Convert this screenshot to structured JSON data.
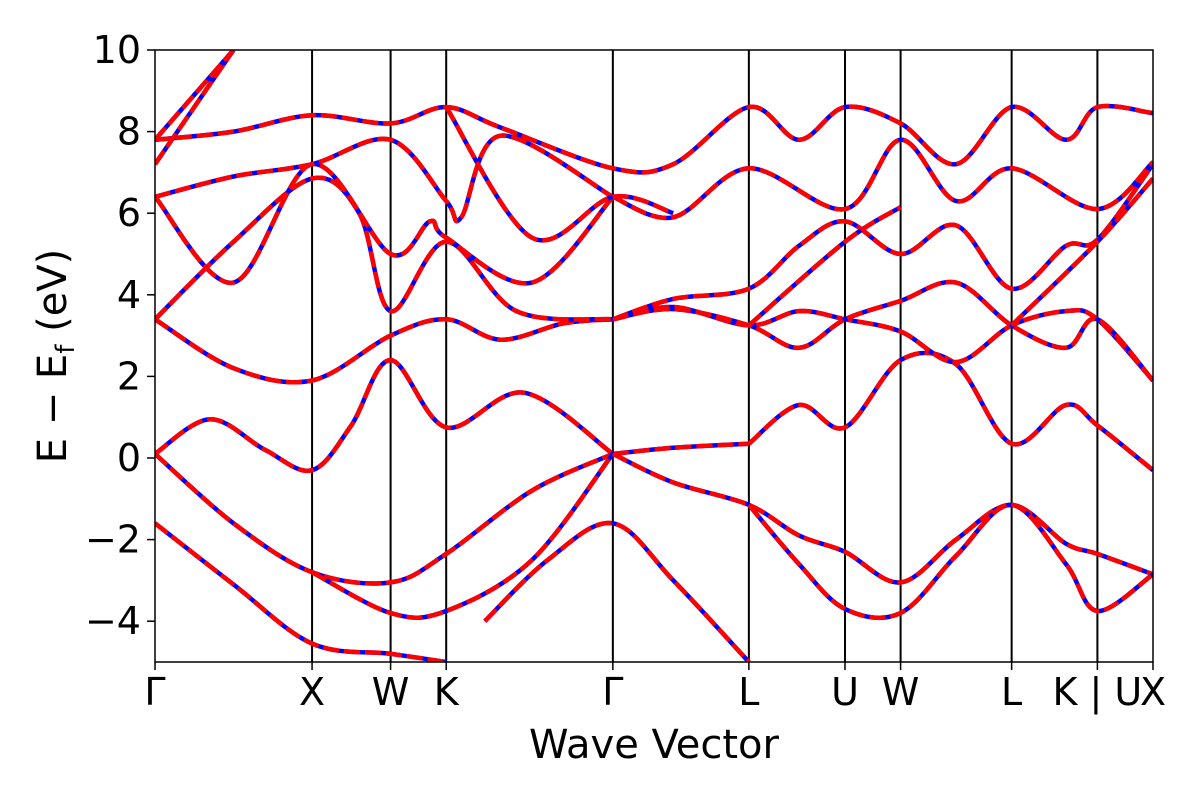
{
  "chart_data": {
    "type": "line",
    "xlabel": "Wave Vector",
    "ylabel": "E − E",
    "ylabel_sub": "f",
    "ylabel_unit": " (eV)",
    "ylim": [
      -5,
      10
    ],
    "yticks": [
      {
        "value": 10,
        "label": "10"
      },
      {
        "value": 8,
        "label": "8"
      },
      {
        "value": 6,
        "label": "6"
      },
      {
        "value": 4,
        "label": "4"
      },
      {
        "value": 2,
        "label": "2"
      },
      {
        "value": 0,
        "label": "0"
      },
      {
        "value": -2,
        "label": "−2"
      },
      {
        "value": -4,
        "label": "−4"
      }
    ],
    "kpoints": [
      {
        "x": 0.0,
        "label": "Γ"
      },
      {
        "x": 1.0,
        "label": "X"
      },
      {
        "x": 1.5,
        "label": "W"
      },
      {
        "x": 1.854,
        "label": "K"
      },
      {
        "x": 2.915,
        "label": "Γ"
      },
      {
        "x": 3.781,
        "label": "L"
      },
      {
        "x": 4.393,
        "label": "U"
      },
      {
        "x": 4.747,
        "label": "W"
      },
      {
        "x": 5.454,
        "label": "L"
      },
      {
        "x": 6.0,
        "label": "K | U"
      },
      {
        "x": 6.354,
        "label": "X"
      }
    ],
    "xlim": [
      0,
      6.354
    ],
    "grid": false,
    "legend": "none",
    "colors": {
      "series_a": "#0000ff",
      "series_b": "#ff0000"
    },
    "bands": [
      [
        [
          0,
          -1.6
        ],
        [
          0.5,
          -3.1
        ],
        [
          1.0,
          -4.55
        ],
        [
          1.5,
          -4.8
        ],
        [
          1.854,
          -5.0
        ]
      ],
      [
        [
          2.1,
          -4.0
        ],
        [
          2.5,
          -2.5
        ],
        [
          2.915,
          -1.6
        ],
        [
          3.3,
          -3.0
        ],
        [
          3.781,
          -5.0
        ]
      ],
      [
        [
          0,
          0.1
        ],
        [
          0.5,
          -1.6
        ],
        [
          1.0,
          -2.8
        ],
        [
          1.5,
          -3.05
        ],
        [
          1.854,
          -2.35
        ],
        [
          2.4,
          -0.8
        ],
        [
          2.915,
          0.1
        ]
      ],
      [
        [
          1.0,
          -2.8
        ],
        [
          1.5,
          -3.8
        ],
        [
          1.854,
          -3.75
        ],
        [
          2.4,
          -2.5
        ],
        [
          2.915,
          0.1
        ]
      ],
      [
        [
          2.915,
          0.1
        ],
        [
          3.3,
          0.25
        ],
        [
          3.781,
          0.35
        ]
      ],
      [
        [
          2.915,
          0.1
        ],
        [
          3.3,
          -0.6
        ],
        [
          3.781,
          -1.15
        ],
        [
          4.1,
          -1.9
        ],
        [
          4.393,
          -2.3
        ],
        [
          4.747,
          -3.05
        ],
        [
          5.1,
          -2.0
        ],
        [
          5.454,
          -1.15
        ],
        [
          5.8,
          -2.1
        ],
        [
          6.0,
          -2.35
        ],
        [
          6.354,
          -2.85
        ]
      ],
      [
        [
          3.781,
          -1.15
        ],
        [
          4.1,
          -2.6
        ],
        [
          4.393,
          -3.7
        ],
        [
          4.747,
          -3.8
        ],
        [
          5.1,
          -2.4
        ],
        [
          5.454,
          -1.15
        ],
        [
          5.8,
          -2.6
        ],
        [
          6.0,
          -3.75
        ],
        [
          6.354,
          -2.85
        ]
      ],
      [
        [
          0,
          0.1
        ],
        [
          0.35,
          0.95
        ],
        [
          0.7,
          0.2
        ],
        [
          1.0,
          -0.3
        ],
        [
          1.25,
          0.8
        ],
        [
          1.5,
          2.4
        ],
        [
          1.854,
          0.75
        ],
        [
          2.35,
          1.6
        ],
        [
          2.915,
          0.1
        ]
      ],
      [
        [
          3.781,
          0.35
        ],
        [
          4.1,
          1.3
        ],
        [
          4.393,
          0.75
        ],
        [
          4.747,
          2.4
        ],
        [
          5.1,
          2.3
        ],
        [
          5.454,
          0.35
        ],
        [
          5.8,
          1.3
        ],
        [
          6.0,
          0.8
        ],
        [
          6.354,
          -0.3
        ]
      ],
      [
        [
          0,
          3.4
        ],
        [
          0.5,
          2.2
        ],
        [
          1.0,
          1.9
        ],
        [
          1.5,
          3.0
        ],
        [
          1.854,
          3.4
        ],
        [
          2.2,
          2.9
        ],
        [
          2.6,
          3.3
        ],
        [
          2.915,
          3.4
        ]
      ],
      [
        [
          2.915,
          3.4
        ],
        [
          3.3,
          3.7
        ],
        [
          3.781,
          3.25
        ],
        [
          4.1,
          3.6
        ],
        [
          4.393,
          3.4
        ],
        [
          4.747,
          3.1
        ],
        [
          5.1,
          2.35
        ],
        [
          5.454,
          3.25
        ],
        [
          5.8,
          3.6
        ],
        [
          6.0,
          3.4
        ],
        [
          6.354,
          1.9
        ]
      ],
      [
        [
          2.915,
          3.4
        ],
        [
          3.3,
          3.65
        ],
        [
          3.781,
          3.25
        ],
        [
          4.1,
          2.7
        ],
        [
          4.393,
          3.4
        ],
        [
          4.747,
          3.85
        ],
        [
          5.1,
          4.3
        ],
        [
          5.454,
          3.25
        ],
        [
          5.8,
          2.7
        ],
        [
          6.0,
          3.4
        ],
        [
          6.354,
          1.9
        ]
      ],
      [
        [
          2.915,
          3.4
        ],
        [
          3.3,
          3.9
        ],
        [
          3.781,
          4.15
        ],
        [
          4.1,
          5.2
        ],
        [
          4.393,
          5.8
        ],
        [
          4.747,
          5.0
        ],
        [
          5.1,
          5.7
        ],
        [
          5.454,
          4.15
        ],
        [
          5.8,
          5.2
        ],
        [
          6.0,
          5.35
        ],
        [
          6.354,
          7.2
        ]
      ],
      [
        [
          3.781,
          3.25
        ],
        [
          4.393,
          5.3
        ],
        [
          4.747,
          6.15
        ]
      ],
      [
        [
          5.454,
          3.25
        ],
        [
          6.0,
          5.3
        ],
        [
          6.354,
          6.85
        ]
      ],
      [
        [
          0,
          3.4
        ],
        [
          0.5,
          5.3
        ],
        [
          1.0,
          6.85
        ],
        [
          1.3,
          6.0
        ],
        [
          1.5,
          3.6
        ],
        [
          1.854,
          5.3
        ],
        [
          2.3,
          3.6
        ],
        [
          2.915,
          3.4
        ]
      ],
      [
        [
          0,
          6.4
        ],
        [
          0.5,
          4.3
        ],
        [
          1.0,
          7.2
        ],
        [
          1.5,
          5.0
        ],
        [
          1.75,
          5.8
        ],
        [
          1.854,
          5.4
        ],
        [
          2.4,
          4.3
        ],
        [
          2.915,
          6.4
        ]
      ],
      [
        [
          0,
          6.4
        ],
        [
          0.5,
          6.9
        ],
        [
          1.0,
          7.2
        ],
        [
          1.5,
          7.8
        ],
        [
          1.854,
          6.3
        ],
        [
          1.95,
          5.9
        ],
        [
          2.2,
          7.9
        ],
        [
          2.915,
          6.4
        ]
      ],
      [
        [
          2.915,
          6.4
        ],
        [
          3.3,
          5.9
        ],
        [
          3.781,
          7.1
        ],
        [
          4.393,
          6.1
        ],
        [
          4.747,
          7.8
        ],
        [
          5.1,
          6.3
        ],
        [
          5.454,
          7.1
        ],
        [
          6.0,
          6.1
        ],
        [
          6.354,
          7.25
        ]
      ],
      [
        [
          1.854,
          8.6
        ],
        [
          2.4,
          5.4
        ],
        [
          2.915,
          6.4
        ],
        [
          3.3,
          6.0
        ]
      ],
      [
        [
          0,
          7.8
        ],
        [
          0.5,
          8.0
        ],
        [
          1.0,
          8.4
        ],
        [
          1.5,
          8.2
        ],
        [
          1.854,
          8.6
        ],
        [
          2.2,
          8.1
        ],
        [
          2.915,
          7.1
        ],
        [
          3.3,
          7.2
        ],
        [
          3.781,
          8.6
        ],
        [
          4.1,
          7.8
        ],
        [
          4.393,
          8.6
        ],
        [
          4.747,
          8.2
        ],
        [
          5.1,
          7.2
        ],
        [
          5.454,
          8.6
        ],
        [
          5.8,
          7.8
        ],
        [
          6.0,
          8.6
        ],
        [
          6.354,
          8.45
        ]
      ],
      [
        [
          0,
          7.2
        ],
        [
          0.5,
          10.0
        ]
      ],
      [
        [
          0,
          7.8
        ],
        [
          0.5,
          10.0
        ]
      ]
    ]
  }
}
